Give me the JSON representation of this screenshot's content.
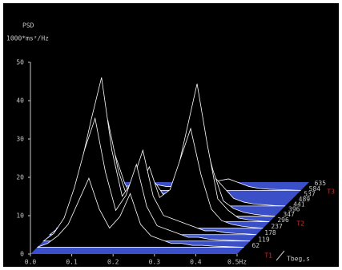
{
  "chart_data": {
    "type": "waterfall3d",
    "title": "PSD",
    "ylabel": "1000*ms²/Hz",
    "zlabel": "Tbeg,s",
    "annotations": [
      "T1",
      "T2",
      "T3"
    ],
    "annotation_color": "#d03030",
    "floor_color": "#3a4fc8",
    "line_color": "#ffffff",
    "xlim": [
      0,
      0.5
    ],
    "xticks": [
      {
        "value": 0,
        "label": "0.0"
      },
      0.1,
      0.2,
      0.3,
      0.4,
      {
        "value": 0.5,
        "label": "0.5Hz"
      }
    ],
    "ylim": [
      0,
      50
    ],
    "yticks": [
      0,
      10,
      20,
      30,
      40,
      50
    ],
    "zlim": [
      0,
      660
    ],
    "zticks": [
      62,
      119,
      178,
      237,
      296,
      347,
      396,
      441,
      489,
      537,
      584,
      635
    ],
    "x": [
      0,
      0.025,
      0.05,
      0.075,
      0.1,
      0.125,
      0.15,
      0.175,
      0.2,
      0.225,
      0.25,
      0.275,
      0.3,
      0.325,
      0.35,
      0.375,
      0.4,
      0.425,
      0.45,
      0.475,
      0.5
    ],
    "series": [
      {
        "t": 62,
        "values": [
          0,
          1,
          3,
          6,
          12,
          18,
          10,
          5,
          8,
          14,
          6,
          3,
          2,
          1,
          1,
          0.5,
          0.5,
          0.3,
          0.2,
          0.1,
          0
        ]
      },
      {
        "t": 119,
        "values": [
          0,
          2,
          6,
          14,
          24,
          32,
          18,
          8,
          12,
          20,
          9,
          4,
          3,
          2,
          1,
          1,
          0.5,
          0.3,
          0.2,
          0.1,
          0
        ]
      },
      {
        "t": 178,
        "values": [
          0,
          2,
          8,
          18,
          30,
          41,
          22,
          10,
          14,
          22,
          10,
          5,
          4,
          3,
          2,
          1,
          1,
          0.5,
          0.3,
          0.2,
          0
        ]
      },
      {
        "t": 237,
        "values": [
          0,
          1,
          5,
          12,
          20,
          28,
          15,
          7,
          10,
          16,
          8,
          10,
          18,
          26,
          14,
          5,
          2,
          1,
          0.5,
          0.2,
          0
        ]
      },
      {
        "t": 296,
        "values": [
          0,
          1,
          3,
          8,
          14,
          18,
          10,
          5,
          6,
          10,
          6,
          12,
          24,
          36,
          20,
          6,
          3,
          1,
          0.5,
          0.2,
          0
        ]
      },
      {
        "t": 347,
        "values": [
          0,
          1,
          2,
          5,
          8,
          10,
          6,
          3,
          4,
          6,
          5,
          8,
          16,
          22,
          12,
          4,
          2,
          1,
          0.5,
          0.2,
          0
        ]
      },
      {
        "t": 441,
        "values": [
          0,
          0.5,
          1,
          2,
          3,
          4,
          3,
          2,
          2,
          3,
          3,
          4,
          6,
          8,
          5,
          2,
          1,
          0.5,
          0.3,
          0.1,
          0
        ]
      },
      {
        "t": 584,
        "values": [
          0,
          0.3,
          0.5,
          1,
          1.5,
          2,
          1.5,
          1,
          1,
          1.5,
          1.5,
          2,
          2.5,
          3,
          2,
          1,
          0.5,
          0.3,
          0.2,
          0.1,
          0
        ]
      }
    ]
  }
}
